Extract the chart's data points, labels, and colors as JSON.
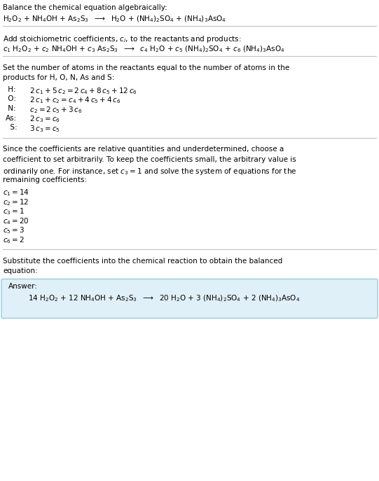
{
  "title": "Balance the chemical equation algebraically:",
  "reaction_unbalanced": "H$_2$O$_2$ + NH$_4$OH + As$_2$S$_3$  $\\longrightarrow$  H$_2$O + (NH$_4$)$_2$SO$_4$ + (NH$_4$)$_3$AsO$_4$",
  "section2_title": "Add stoichiometric coefficients, $c_i$, to the reactants and products:",
  "reaction_coeff": "$c_1$ H$_2$O$_2$ + $c_2$ NH$_4$OH + $c_3$ As$_2$S$_3$  $\\longrightarrow$  $c_4$ H$_2$O + $c_5$ (NH$_4$)$_2$SO$_4$ + $c_6$ (NH$_4$)$_3$AsO$_4$",
  "section3_intro": "Set the number of atoms in the reactants equal to the number of atoms in the",
  "section3_intro2": "products for H, O, N, As and S:",
  "equations": [
    [
      " H:",
      "  $2\\,c_1 + 5\\,c_2 = 2\\,c_4 + 8\\,c_5 + 12\\,c_6$"
    ],
    [
      " O:",
      "  $2\\,c_1 + c_2 = c_4 + 4\\,c_5 + 4\\,c_6$"
    ],
    [
      " N:",
      "  $c_2 = 2\\,c_5 + 3\\,c_6$"
    ],
    [
      "As:",
      "  $2\\,c_3 = c_6$"
    ],
    [
      "  S:",
      "  $3\\,c_3 = c_5$"
    ]
  ],
  "section4_lines": [
    "Since the coefficients are relative quantities and underdetermined, choose a",
    "coefficient to set arbitrarily. To keep the coefficients small, the arbitrary value is",
    "ordinarily one. For instance, set $c_3 = 1$ and solve the system of equations for the",
    "remaining coefficients:"
  ],
  "coefficients": [
    "$c_1 = 14$",
    "$c_2 = 12$",
    "$c_3 = 1$",
    "$c_4 = 20$",
    "$c_5 = 3$",
    "$c_6 = 2$"
  ],
  "section5_line1": "Substitute the coefficients into the chemical reaction to obtain the balanced",
  "section5_line2": "equation:",
  "answer_label": "Answer:",
  "reaction_balanced": "14 H$_2$O$_2$ + 12 NH$_4$OH + As$_2$S$_3$  $\\longrightarrow$  20 H$_2$O + 3 (NH$_4$)$_2$SO$_4$ + 2 (NH$_4$)$_3$AsO$_4$",
  "bg_color": "#ffffff",
  "answer_box_color": "#e0f0f8",
  "text_color": "#000000",
  "line_color": "#bbbbbb",
  "font_size": 7.5
}
